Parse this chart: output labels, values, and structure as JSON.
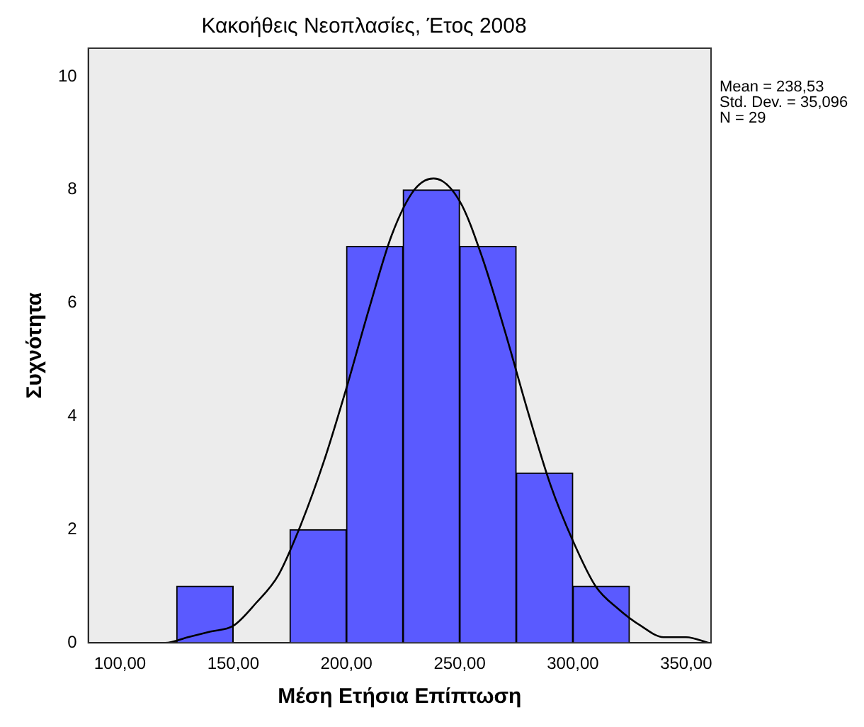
{
  "chart_data": {
    "type": "histogram",
    "title": "Κακοήθεις Νεοπλασίες, Έτος 2008",
    "xlabel": "Μέση Ετήσια Επίπτωση",
    "ylabel": "Συχνότητα",
    "bins": [
      125,
      150,
      175,
      200,
      225,
      250,
      275,
      300,
      325
    ],
    "values": [
      1,
      0,
      2,
      7,
      8,
      7,
      3,
      1
    ],
    "color": "#5a5aff",
    "series": [
      {
        "type": "line",
        "color": "#000000",
        "x": [
          100,
          110,
          120,
          130,
          140,
          150,
          160,
          170,
          180,
          190,
          200,
          210,
          220,
          230,
          238.5,
          250,
          260,
          270,
          280,
          290,
          300,
          310,
          320,
          330,
          340,
          350,
          360
        ],
        "values": [
          0,
          0,
          0,
          0.1,
          0.2,
          0.3,
          0.7,
          1.2,
          2.1,
          3.2,
          4.5,
          5.9,
          7.2,
          8,
          8.2,
          7.8,
          6.8,
          5.5,
          4.1,
          2.8,
          1.8,
          1,
          0.6,
          0.3,
          0.1,
          0.1,
          0
        ]
      }
    ],
    "xlim": [
      86,
      361
    ],
    "xticks": [
      {
        "value": 100,
        "label": "100,00"
      },
      {
        "value": 150,
        "label": "150,00"
      },
      {
        "value": 200,
        "label": "200,00"
      },
      {
        "value": 250,
        "label": "250,00"
      },
      {
        "value": 300,
        "label": "300,00"
      },
      {
        "value": 350,
        "label": "350,00"
      }
    ],
    "ylim": [
      0,
      10.5
    ],
    "yticks": [
      0,
      2,
      4,
      6,
      8,
      10
    ],
    "grid": false,
    "legend": false,
    "marker": "none",
    "annotations": [
      "Mean = 238,53",
      "Std. Dev. = 35,096",
      "N = 29"
    ]
  }
}
